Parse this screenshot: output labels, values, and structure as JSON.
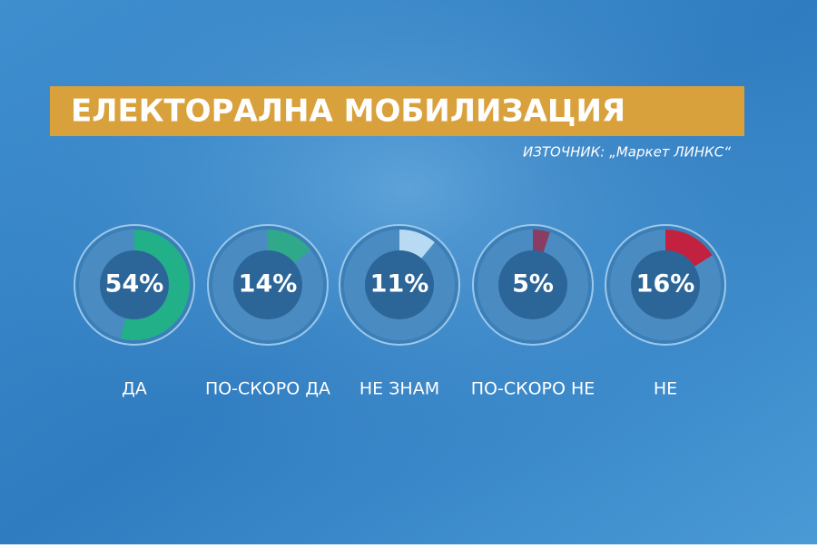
{
  "chart_data": {
    "type": "donut",
    "title": "ЕЛЕКТОРАЛНА МОБИЛИЗАЦИЯ",
    "source": "ИЗТОЧНИК: „Маркет ЛИНКС“",
    "categories": [
      "ДА",
      "ПО-СКОРО ДА",
      "НЕ ЗНАМ",
      "ПО-СКОРО НЕ",
      "НЕ"
    ],
    "values": [
      54,
      14,
      11,
      5,
      16
    ],
    "value_labels": [
      "54%",
      "14%",
      "11%",
      "5%",
      "16%"
    ],
    "colors": [
      "#22b089",
      "#2fa98a",
      "#b9daf3",
      "#8a3c63",
      "#c2213f"
    ]
  }
}
